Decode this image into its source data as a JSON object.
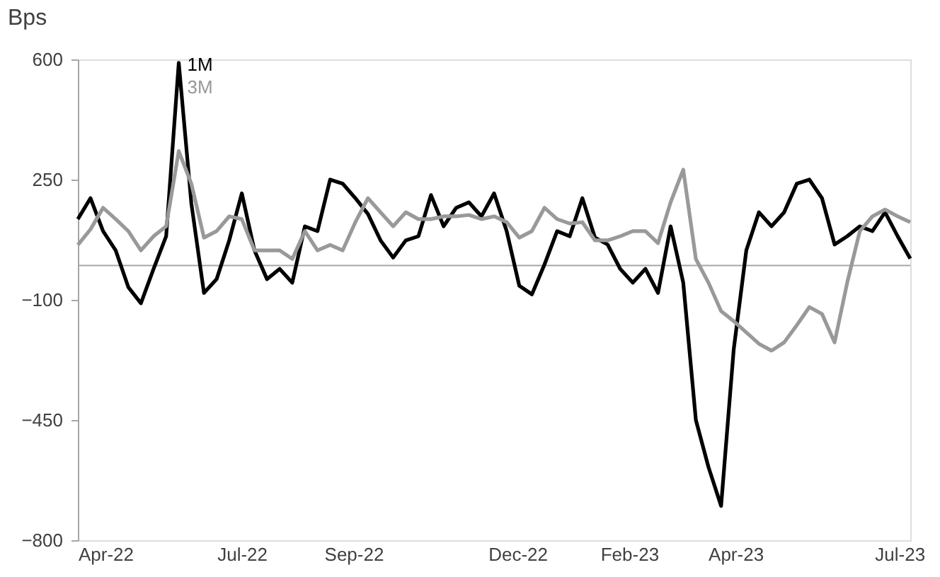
{
  "chart_data": {
    "type": "line",
    "ylabel": "Bps",
    "x": [
      "2022-04-01",
      "2022-04-08",
      "2022-04-15",
      "2022-04-22",
      "2022-04-29",
      "2022-05-06",
      "2022-05-13",
      "2022-05-20",
      "2022-05-27",
      "2022-06-03",
      "2022-06-10",
      "2022-06-17",
      "2022-06-24",
      "2022-07-01",
      "2022-07-08",
      "2022-07-15",
      "2022-07-22",
      "2022-07-29",
      "2022-08-05",
      "2022-08-12",
      "2022-08-19",
      "2022-08-26",
      "2022-09-02",
      "2022-09-09",
      "2022-09-16",
      "2022-09-23",
      "2022-09-30",
      "2022-10-07",
      "2022-10-14",
      "2022-10-21",
      "2022-10-28",
      "2022-11-04",
      "2022-11-11",
      "2022-11-18",
      "2022-11-25",
      "2022-12-02",
      "2022-12-09",
      "2022-12-16",
      "2022-12-23",
      "2022-12-30",
      "2023-01-06",
      "2023-01-13",
      "2023-01-20",
      "2023-01-27",
      "2023-02-03",
      "2023-02-10",
      "2023-02-17",
      "2023-02-24",
      "2023-03-03",
      "2023-03-10",
      "2023-03-17",
      "2023-03-24",
      "2023-03-31",
      "2023-04-07",
      "2023-04-14",
      "2023-04-21",
      "2023-04-28",
      "2023-05-05",
      "2023-05-12",
      "2023-05-19",
      "2023-05-26",
      "2023-06-02",
      "2023-06-09",
      "2023-06-16",
      "2023-06-23",
      "2023-06-30",
      "2023-07-07"
    ],
    "series": [
      {
        "name": "1M",
        "color": "#000000",
        "values": [
          135,
          196,
          100,
          44,
          -63,
          -110,
          -10,
          85,
          590,
          180,
          -80,
          -40,
          73,
          210,
          44,
          -40,
          -10,
          -50,
          114,
          100,
          250,
          238,
          196,
          150,
          73,
          23,
          73,
          85,
          205,
          114,
          168,
          184,
          143,
          210,
          100,
          -59,
          -84,
          3,
          100,
          85,
          196,
          81,
          61,
          -10,
          -50,
          -10,
          -80,
          114,
          -50,
          -450,
          -587,
          -700,
          -245,
          44,
          155,
          114,
          155,
          238,
          250,
          196,
          61,
          85,
          114,
          100,
          155,
          85,
          20
        ]
      },
      {
        "name": "3M",
        "color": "#999999",
        "values": [
          60,
          105,
          168,
          135,
          100,
          44,
          85,
          114,
          333,
          238,
          81,
          100,
          143,
          135,
          44,
          44,
          44,
          19,
          100,
          44,
          60,
          44,
          126,
          196,
          155,
          114,
          155,
          135,
          135,
          143,
          143,
          147,
          135,
          143,
          126,
          81,
          100,
          168,
          135,
          122,
          126,
          73,
          73,
          85,
          100,
          100,
          65,
          184,
          279,
          19,
          -50,
          -133,
          -162,
          -195,
          -228,
          -248,
          -224,
          -174,
          -121,
          -141,
          -224,
          -50,
          100,
          143,
          163,
          143,
          126
        ]
      }
    ],
    "xlim": [
      "2022-04-01",
      "2023-07-07"
    ],
    "xticks": [
      {
        "value": "2022-04-01",
        "label": "Apr-22"
      },
      {
        "value": "2022-07-01",
        "label": "Jul-22"
      },
      {
        "value": "2022-09-01",
        "label": "Sep-22"
      },
      {
        "value": "2022-12-01",
        "label": "Dec-22"
      },
      {
        "value": "2023-02-01",
        "label": "Feb-23"
      },
      {
        "value": "2023-04-01",
        "label": "Apr-23"
      },
      {
        "value": "2023-07-01",
        "label": "Jul-23"
      }
    ],
    "ylim": [
      -800,
      600
    ],
    "yticks": [
      -800,
      -450,
      -100,
      250,
      600
    ],
    "ref_lines": [
      {
        "axis": "y",
        "value": 0,
        "color": "#a6a6a6"
      }
    ],
    "grid": false,
    "legend": false,
    "marker": "none",
    "line_style": "solid"
  }
}
